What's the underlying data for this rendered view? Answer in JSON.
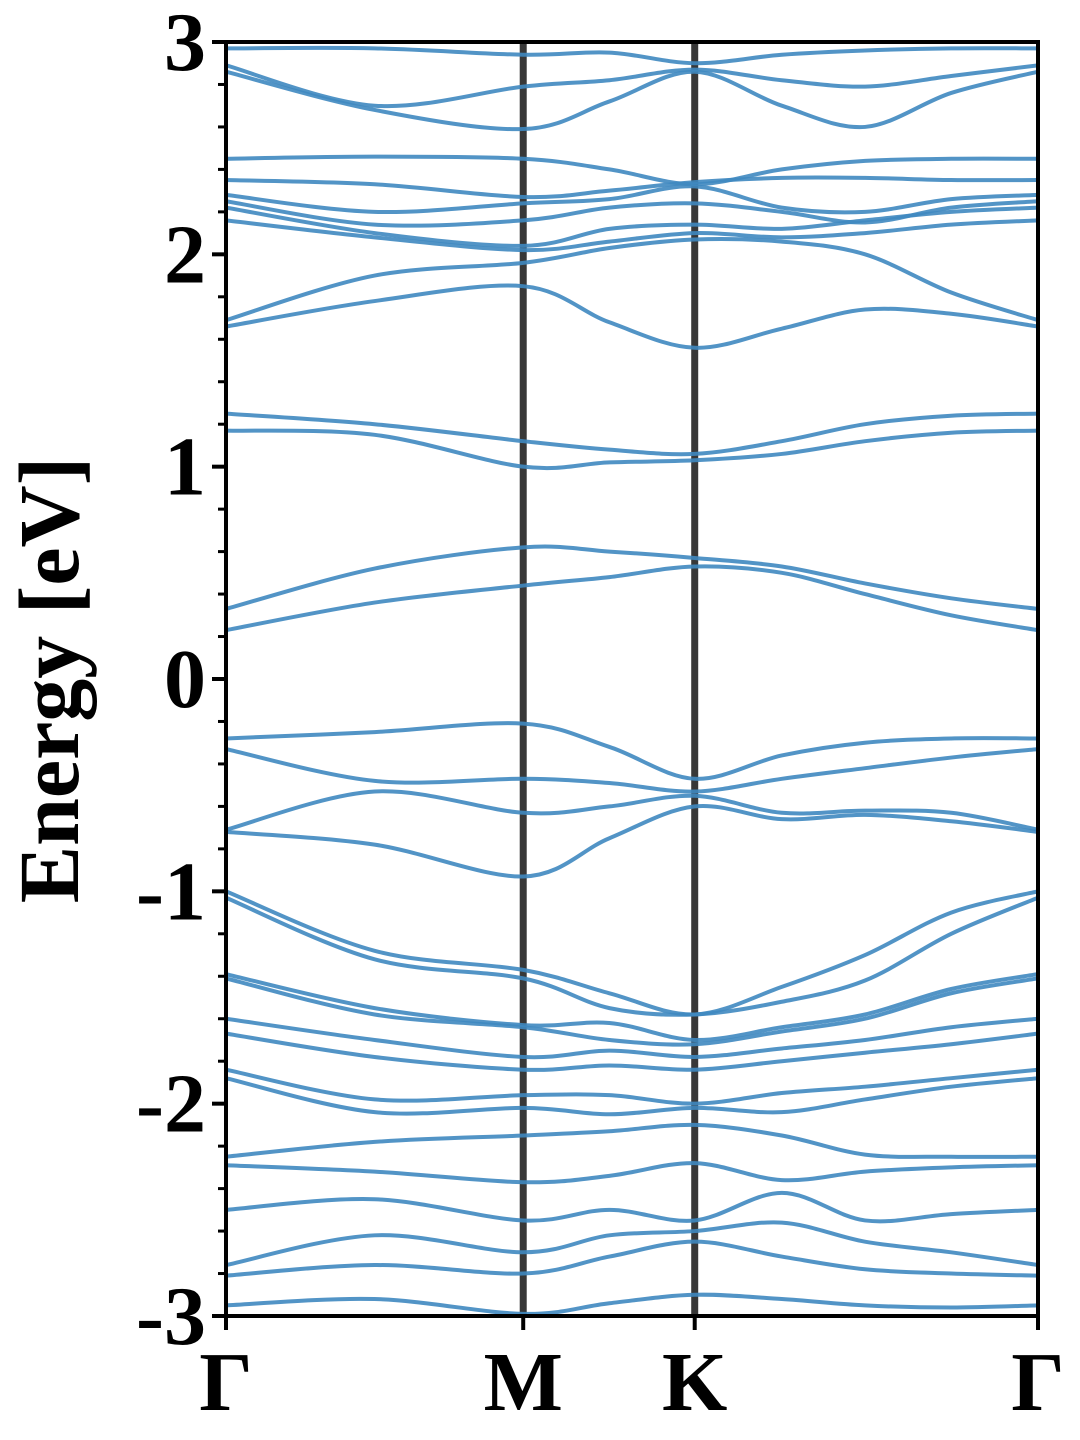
{
  "chart_data": {
    "type": "line",
    "ylabel": "Energy [eV]",
    "x": [
      0,
      0.5,
      1,
      1.29,
      1.577,
      1.87,
      2.15,
      2.44,
      2.732
    ],
    "xlim": [
      0,
      2.732
    ],
    "xticks": [
      {
        "value": 0,
        "label": "Γ"
      },
      {
        "value": 1,
        "label": "M"
      },
      {
        "value": 1.577,
        "label": "K"
      },
      {
        "value": 2.732,
        "label": "Γ"
      }
    ],
    "ylim": [
      -3,
      3
    ],
    "yticks": [
      -3,
      -2,
      -1,
      0,
      1,
      2,
      3
    ],
    "yminorticks": [
      -2.8,
      -2.6,
      -2.4,
      -2.2,
      -1.8,
      -1.6,
      -1.4,
      -1.2,
      -0.8,
      -0.6,
      -0.4,
      -0.2,
      0.2,
      0.4,
      0.6,
      0.8,
      1.2,
      1.4,
      1.6,
      1.8,
      2.2,
      2.4,
      2.6,
      2.8
    ],
    "color": "#3f88c0",
    "series": [
      {
        "values": [
          0.23,
          0.36,
          0.44,
          0.48,
          0.53,
          0.5,
          0.4,
          0.3,
          0.23
        ]
      },
      {
        "values": [
          0.33,
          0.52,
          0.62,
          0.6,
          0.57,
          0.53,
          0.45,
          0.38,
          0.33
        ]
      },
      {
        "values": [
          1.17,
          1.15,
          1.0,
          1.02,
          1.03,
          1.06,
          1.12,
          1.16,
          1.17
        ]
      },
      {
        "values": [
          1.25,
          1.2,
          1.12,
          1.08,
          1.06,
          1.12,
          1.2,
          1.24,
          1.25
        ]
      },
      {
        "values": [
          1.66,
          1.78,
          1.85,
          1.68,
          1.56,
          1.65,
          1.74,
          1.72,
          1.66
        ]
      },
      {
        "values": [
          1.69,
          1.9,
          1.96,
          2.03,
          2.07,
          2.06,
          2.0,
          1.82,
          1.69
        ]
      },
      {
        "values": [
          2.16,
          2.08,
          2.02,
          2.06,
          2.1,
          2.08,
          2.1,
          2.14,
          2.16
        ]
      },
      {
        "values": [
          2.22,
          2.1,
          2.04,
          2.12,
          2.14,
          2.12,
          2.16,
          2.2,
          2.22
        ]
      },
      {
        "values": [
          2.25,
          2.14,
          2.16,
          2.22,
          2.24,
          2.2,
          2.15,
          2.22,
          2.25
        ]
      },
      {
        "values": [
          2.28,
          2.2,
          2.24,
          2.26,
          2.32,
          2.22,
          2.2,
          2.26,
          2.28
        ]
      },
      {
        "values": [
          2.35,
          2.33,
          2.27,
          2.3,
          2.34,
          2.36,
          2.36,
          2.35,
          2.35
        ]
      },
      {
        "values": [
          2.45,
          2.46,
          2.45,
          2.4,
          2.33,
          2.4,
          2.44,
          2.45,
          2.45
        ]
      },
      {
        "values": [
          2.86,
          2.68,
          2.59,
          2.72,
          2.86,
          2.7,
          2.6,
          2.76,
          2.86
        ]
      },
      {
        "values": [
          2.89,
          2.7,
          2.79,
          2.82,
          2.87,
          2.82,
          2.79,
          2.84,
          2.89
        ]
      },
      {
        "values": [
          2.97,
          2.97,
          2.94,
          2.95,
          2.9,
          2.94,
          2.96,
          2.97,
          2.97
        ]
      },
      {
        "values": [
          -0.28,
          -0.25,
          -0.21,
          -0.32,
          -0.47,
          -0.36,
          -0.3,
          -0.28,
          -0.28
        ]
      },
      {
        "values": [
          -0.33,
          -0.48,
          -0.47,
          -0.49,
          -0.53,
          -0.47,
          -0.42,
          -0.37,
          -0.33
        ]
      },
      {
        "values": [
          -0.71,
          -0.53,
          -0.63,
          -0.6,
          -0.55,
          -0.63,
          -0.62,
          -0.63,
          -0.71
        ]
      },
      {
        "values": [
          -0.72,
          -0.78,
          -0.93,
          -0.75,
          -0.6,
          -0.66,
          -0.64,
          -0.67,
          -0.72
        ]
      },
      {
        "values": [
          -1.0,
          -1.28,
          -1.37,
          -1.48,
          -1.58,
          -1.45,
          -1.3,
          -1.1,
          -1.0
        ]
      },
      {
        "values": [
          -1.03,
          -1.32,
          -1.41,
          -1.55,
          -1.58,
          -1.52,
          -1.42,
          -1.2,
          -1.03
        ]
      },
      {
        "values": [
          -1.39,
          -1.55,
          -1.63,
          -1.62,
          -1.7,
          -1.64,
          -1.58,
          -1.46,
          -1.39
        ]
      },
      {
        "values": [
          -1.41,
          -1.58,
          -1.64,
          -1.7,
          -1.72,
          -1.66,
          -1.6,
          -1.48,
          -1.41
        ]
      },
      {
        "values": [
          -1.6,
          -1.7,
          -1.78,
          -1.75,
          -1.78,
          -1.74,
          -1.7,
          -1.64,
          -1.6
        ]
      },
      {
        "values": [
          -1.67,
          -1.78,
          -1.84,
          -1.82,
          -1.84,
          -1.8,
          -1.76,
          -1.72,
          -1.67
        ]
      },
      {
        "values": [
          -1.84,
          -1.98,
          -1.96,
          -1.96,
          -2.0,
          -1.95,
          -1.92,
          -1.88,
          -1.84
        ]
      },
      {
        "values": [
          -1.88,
          -2.04,
          -2.02,
          -2.05,
          -2.02,
          -2.04,
          -1.98,
          -1.92,
          -1.88
        ]
      },
      {
        "values": [
          -2.25,
          -2.18,
          -2.15,
          -2.13,
          -2.1,
          -2.15,
          -2.24,
          -2.25,
          -2.25
        ]
      },
      {
        "values": [
          -2.29,
          -2.32,
          -2.37,
          -2.34,
          -2.28,
          -2.36,
          -2.32,
          -2.3,
          -2.29
        ]
      },
      {
        "values": [
          -2.5,
          -2.45,
          -2.55,
          -2.5,
          -2.55,
          -2.42,
          -2.55,
          -2.52,
          -2.5
        ]
      },
      {
        "values": [
          -2.76,
          -2.62,
          -2.7,
          -2.62,
          -2.6,
          -2.56,
          -2.65,
          -2.7,
          -2.76
        ]
      },
      {
        "values": [
          -2.81,
          -2.76,
          -2.8,
          -2.72,
          -2.65,
          -2.72,
          -2.78,
          -2.8,
          -2.81
        ]
      },
      {
        "values": [
          -2.95,
          -2.92,
          -2.99,
          -2.94,
          -2.9,
          -2.92,
          -2.95,
          -2.96,
          -2.95
        ]
      }
    ]
  }
}
